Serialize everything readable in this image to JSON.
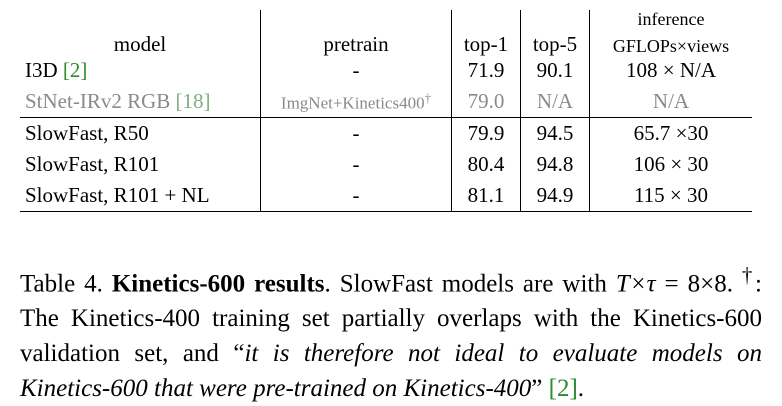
{
  "table": {
    "headers": {
      "model": "model",
      "pretrain": "pretrain",
      "top1": "top-1",
      "top5": "top-5",
      "inference_line1": "inference",
      "inference_line2": "GFLOPs×views"
    },
    "rows": [
      {
        "model": "I3D ",
        "cite": "[2]",
        "pretrain": "-",
        "top1": "71.9",
        "top5": "90.1",
        "inference": "108 × N/A"
      },
      {
        "model": "StNet-IRv2 RGB ",
        "cite": "[18]",
        "pretrain": "ImgNet+Kinetics400",
        "pretrain_mark": "†",
        "top1": "79.0",
        "top5": "N/A",
        "inference": "N/A"
      },
      {
        "model": "SlowFast, R50",
        "pretrain": "-",
        "top1": "79.9",
        "top5": "94.5",
        "inference": "65.7 ×30"
      },
      {
        "model": "SlowFast, R101",
        "pretrain": "-",
        "top1": "80.4",
        "top5": "94.8",
        "inference": "106 × 30"
      },
      {
        "model": "SlowFast, R101 + NL",
        "pretrain": "-",
        "top1": "81.1",
        "top5": "94.9",
        "inference": "115 × 30"
      }
    ]
  },
  "caption": {
    "prefix": "Table 4. ",
    "title": "Kinetics-600 results",
    "text1": ". SlowFast models are with ",
    "math1": "T×τ",
    "text2": " = 8×8. ",
    "dagger": "†",
    "text3": ": The Kinetics-400 training set partially overlaps with the Kinetics-600 validation set, and “",
    "quote": "it is therefore not ideal to evaluate models on Kinetics-600 that were pre-trained on Kinetics-400",
    "text4": "” ",
    "cite": "[2]",
    "end": "."
  },
  "colors": {
    "citation": "#2e8b2e",
    "grayed_row": "#8a8a8a"
  }
}
